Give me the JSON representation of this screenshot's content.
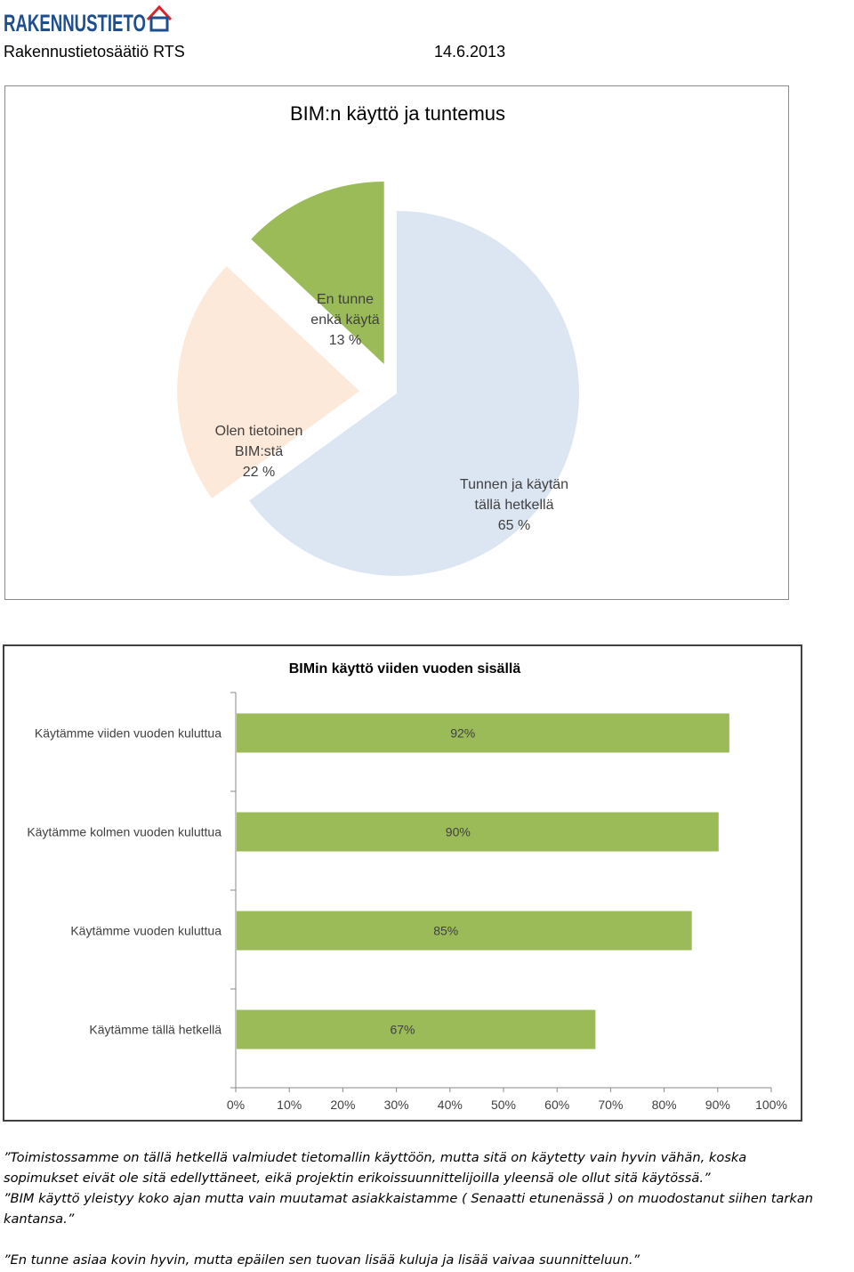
{
  "header": {
    "logo_text": "RAKENNUSTIETO",
    "organization": "Rakennustietosäätiö RTS",
    "date": "14.6.2013"
  },
  "colors": {
    "brand": "#1f4e8c",
    "logo_roof": "#d7262b",
    "pie_blue": "#dce6f2",
    "pie_peach": "#fde9d9",
    "pie_green": "#9bbb59",
    "bar_green": "#9bbb59"
  },
  "chart_data": [
    {
      "type": "pie",
      "title": "BIM:n käyttö ja tuntemus",
      "slices": [
        {
          "label_lines": [
            "Tunnen ja käytän",
            "tällä hetkellä",
            "65 %"
          ],
          "value": 65,
          "color": "#dce6f2"
        },
        {
          "label_lines": [
            "Olen tietoinen",
            "BIM:stä",
            "22 %"
          ],
          "value": 22,
          "color": "#fde9d9"
        },
        {
          "label_lines": [
            "En tunne",
            "enkä käytä",
            "13 %"
          ],
          "value": 13,
          "color": "#9bbb59"
        }
      ]
    },
    {
      "type": "bar",
      "orientation": "horizontal",
      "title": "BIMin käyttö viiden vuoden sisällä",
      "categories": [
        "Käytämme viiden vuoden kuluttua",
        "Käytämme kolmen vuoden kuluttua",
        "Käytämme vuoden kuluttua",
        "Käytämme tällä hetkellä"
      ],
      "values": [
        92,
        90,
        85,
        67
      ],
      "data_labels": [
        "92%",
        "90%",
        "85%",
        "67%"
      ],
      "xlim": [
        0,
        100
      ],
      "x_ticks": [
        "0%",
        "10%",
        "20%",
        "30%",
        "40%",
        "50%",
        "60%",
        "70%",
        "80%",
        "90%",
        "100%"
      ],
      "grid": false
    }
  ],
  "quotes": [
    "”Toimistossamme on tällä hetkellä valmiudet tietomallin käyttöön, mutta sitä on käytetty vain hyvin vähän, koska",
    "sopimukset eivät ole sitä edellyttäneet, eikä projektin erikoissuunnittelijoilla yleensä ole ollut sitä käytössä.”",
    "”BIM käyttö yleistyy koko ajan mutta vain muutamat asiakkaistamme ( Senaatti etunenässä ) on muodostanut siihen tarkan",
    "kantansa.”",
    "”En tunne asiaa kovin hyvin, mutta epäilen sen tuovan lisää kuluja ja lisää vaivaa suunnitteluun.”"
  ]
}
